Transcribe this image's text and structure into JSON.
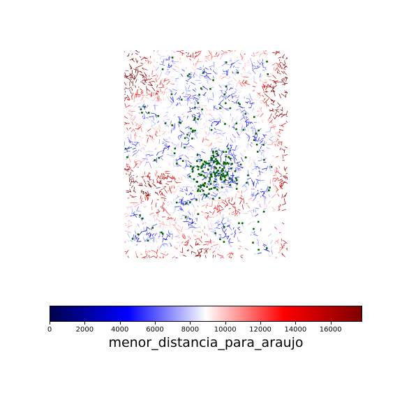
{
  "colorbar": {
    "label": "menor_distancia_para_araujo",
    "min": 0,
    "max": 17800,
    "ticks": [
      "0",
      "2000",
      "4000",
      "6000",
      "8000",
      "10000",
      "12000",
      "14000",
      "16000"
    ],
    "colormap": "seismic",
    "colors": [
      "#00004c",
      "#0000ff",
      "#ffffff",
      "#ff0000",
      "#7f0000"
    ]
  },
  "map": {
    "description_colors": {
      "near": "#0000ff",
      "far": "#8b0000",
      "points": "#006400"
    }
  }
}
